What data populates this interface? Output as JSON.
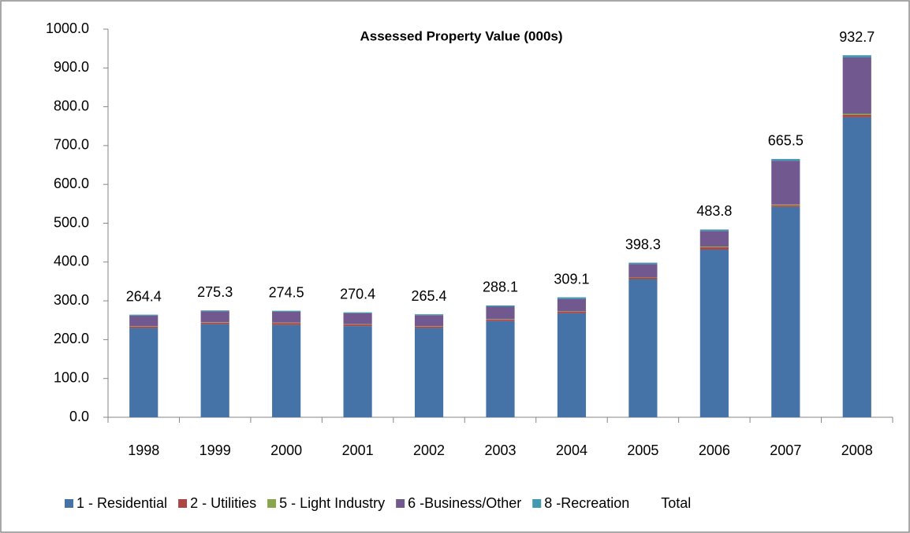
{
  "chart_data": {
    "type": "stacked-bar",
    "title": "Assessed Property Value (000s)",
    "categories": [
      "1998",
      "1999",
      "2000",
      "2001",
      "2002",
      "2003",
      "2004",
      "2005",
      "2006",
      "2007",
      "2008"
    ],
    "series": [
      {
        "name": "1 - Residential",
        "color": "#4572a7",
        "values": [
          230,
          240,
          238,
          235,
          230,
          248,
          268,
          356,
          432,
          542,
          773
        ]
      },
      {
        "name": "2 - Utilities",
        "color": "#aa4643",
        "values": [
          4,
          4,
          5,
          4,
          4,
          4,
          4,
          4,
          6,
          4,
          6
        ]
      },
      {
        "name": "5 - Light Industry",
        "color": "#89a54e",
        "values": [
          1,
          1,
          1,
          1,
          1,
          1,
          1,
          1,
          2,
          2,
          3
        ]
      },
      {
        "name": "6 -Business/Other",
        "color": "#71588f",
        "values": [
          27,
          28,
          28,
          28,
          28,
          32,
          32,
          34,
          40,
          113,
          145
        ]
      },
      {
        "name": "8 -Recreation",
        "color": "#4198af",
        "values": [
          2.4,
          2.3,
          2.5,
          2.4,
          2.4,
          3.1,
          4.1,
          3.3,
          3.8,
          4.5,
          5.7
        ]
      }
    ],
    "totals": {
      "name": "Total",
      "values": [
        264.4,
        275.3,
        274.5,
        270.4,
        265.4,
        288.1,
        309.1,
        398.3,
        483.8,
        665.5,
        932.7
      ]
    },
    "ylim": [
      0,
      1000
    ],
    "yticks": [
      {
        "value": 0,
        "label": "0.0"
      },
      {
        "value": 100,
        "label": "100.0"
      },
      {
        "value": 200,
        "label": "200.0"
      },
      {
        "value": 300,
        "label": "300.0"
      },
      {
        "value": 400,
        "label": "400.0"
      },
      {
        "value": 500,
        "label": "500.0"
      },
      {
        "value": 600,
        "label": "600.0"
      },
      {
        "value": 700,
        "label": "700.0"
      },
      {
        "value": 800,
        "label": "800.0"
      },
      {
        "value": 900,
        "label": "900.0"
      },
      {
        "value": 1000,
        "label": "1000.0"
      }
    ],
    "legend": "bottom"
  }
}
